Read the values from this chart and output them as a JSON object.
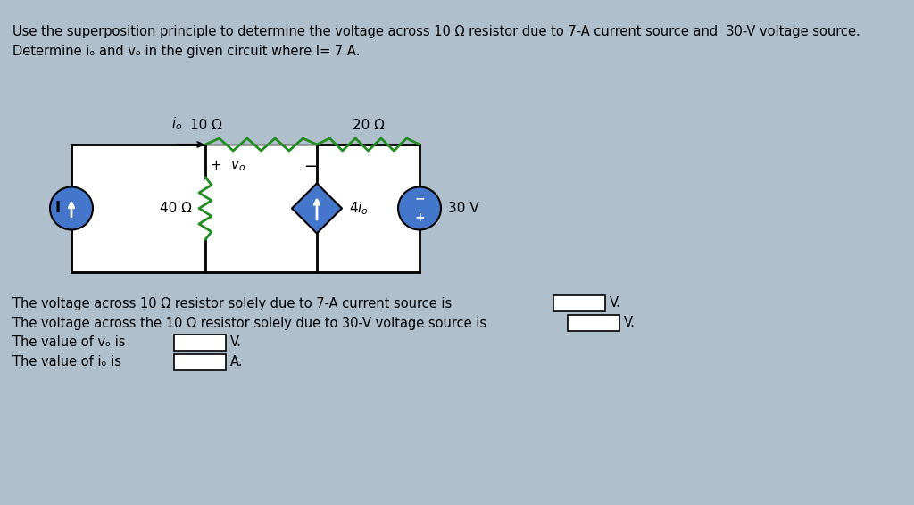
{
  "bg_color": "#b0bfcc",
  "title_line1": "Use the superposition principle to determine the voltage across 10 Ω resistor due to 7-A current source and  30-V voltage source.",
  "title_line2": "Determine iₒ and vₒ in the given circuit where I= 7 A.",
  "q1": "The voltage across 10 Ω resistor solely due to 7-A current source is",
  "q1_unit": "V.",
  "q2": "The voltage across the 10 Ω resistor solely due to 30-V voltage source is",
  "q2_unit": "V.",
  "q3_pre": "The value of vₒ is",
  "q3_unit": "V.",
  "q4_pre": "The value of iₒ is",
  "q4_unit": "A.",
  "wire_color": "#000000",
  "resistor_color": "#228B22",
  "current_source_fill": "#4477cc",
  "voltage_source_fill": "#4477cc",
  "dep_source_fill": "#4477cc",
  "circuit_bg": "#ffffff",
  "circuit_border": "#888888",
  "font_size_title": 10.5,
  "font_size_q": 10.5,
  "font_size_label": 11
}
